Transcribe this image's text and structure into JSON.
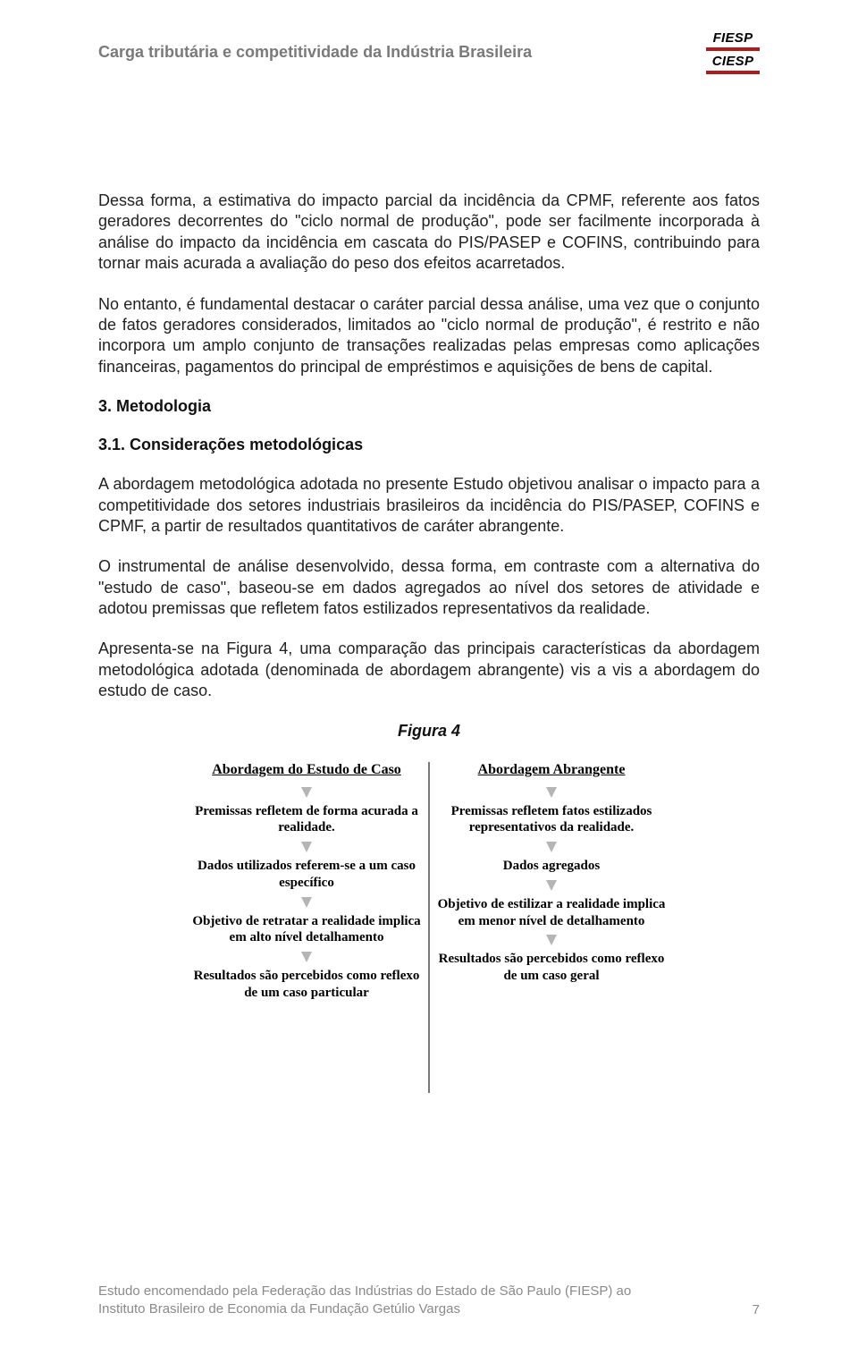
{
  "header": {
    "title": "Carga tributária e competitividade da Indústria Brasileira",
    "logo1": "FIESP",
    "logo2": "CIESP",
    "logo_underline_color": "#b01c1c"
  },
  "body": {
    "p1": "Dessa forma, a estimativa do impacto parcial da incidência da CPMF, referente aos fatos geradores decorrentes do \"ciclo normal de produção\", pode ser facilmente incorporada à análise do impacto da incidência em cascata do PIS/PASEP e COFINS, contribuindo para tornar mais acurada a avaliação do peso dos efeitos acarretados.",
    "p2": "No entanto, é fundamental destacar o caráter parcial dessa análise, uma vez que o conjunto de fatos geradores considerados, limitados ao \"ciclo normal de produção\", é restrito e não incorpora um amplo conjunto de transações realizadas pelas empresas como aplicações financeiras, pagamentos do principal de empréstimos e aquisições de bens de capital.",
    "h3": "3. Metodologia",
    "h3_1": "3.1. Considerações metodológicas",
    "p3": "A abordagem metodológica adotada no presente Estudo objetivou analisar o impacto para a competitividade dos setores industriais brasileiros da incidência do PIS/PASEP, COFINS e CPMF, a partir de resultados quantitativos de caráter abrangente.",
    "p4": "O instrumental de análise desenvolvido, dessa forma, em contraste com a alternativa do \"estudo de caso\", baseou-se em dados agregados ao nível dos setores de atividade e adotou premissas que refletem fatos estilizados representativos da realidade.",
    "p5": "Apresenta-se na Figura 4, uma comparação das principais características da abordagem metodológica adotada (denominada de abordagem abrangente) vis a vis a abordagem do estudo de caso.",
    "fig_title": "Figura 4"
  },
  "figure4": {
    "left": {
      "head": "Abordagem do Estudo de Caso",
      "b1": "Premissas refletem de forma acurada a realidade.",
      "b2": "Dados utilizados referem-se a um caso específico",
      "b3": "Objetivo de retratar a realidade implica em alto nível detalhamento",
      "b4": "Resultados são percebidos como reflexo de um caso particular"
    },
    "right": {
      "head": "Abordagem Abrangente",
      "b1": "Premissas refletem fatos estilizados representativos da realidade.",
      "b2": "Dados agregados",
      "b3": "Objetivo de estilizar a realidade implica em menor nível de detalhamento",
      "b4": "Resultados são percebidos como reflexo de um caso geral"
    },
    "arrow_color": "#b5b5b5",
    "divider_color": "#777777"
  },
  "footer": {
    "text": "Estudo encomendado pela Federação das Indústrias do Estado de São Paulo (FIESP) ao Instituto Brasileiro de Economia da Fundação Getúlio Vargas",
    "page": "7"
  }
}
